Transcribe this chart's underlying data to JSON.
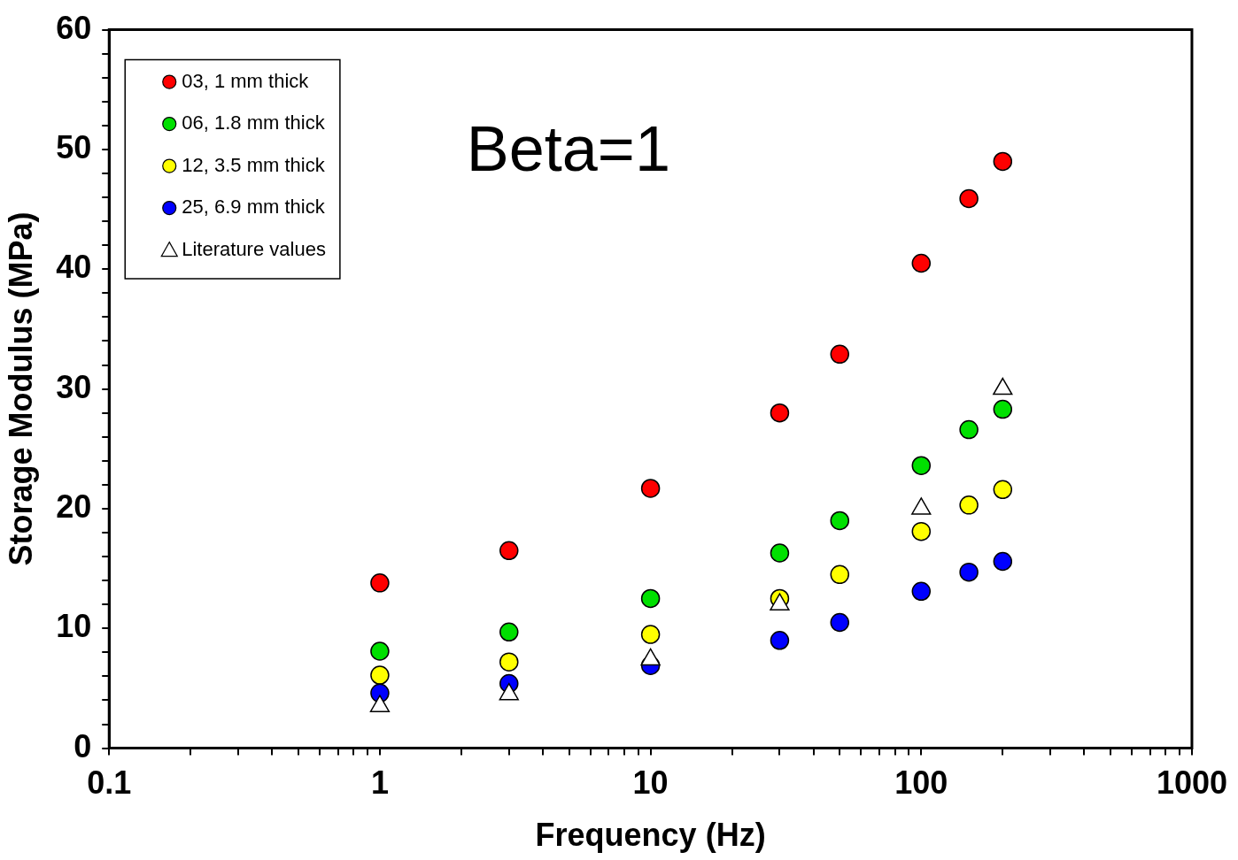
{
  "chart_data": {
    "type": "scatter",
    "xlabel": "Frequency (Hz)",
    "ylabel": "Storage Modulus (MPa)",
    "log": "x",
    "grid": false,
    "legend": "top left",
    "marker": "circle",
    "x": [
      1,
      3,
      10,
      30,
      50,
      100,
      150,
      200
    ],
    "xlim": [
      0.1,
      1000
    ],
    "xticks": [
      0.1,
      {
        "value": 0.2,
        "label": null
      },
      {
        "value": 0.3,
        "label": null
      },
      {
        "value": 0.4,
        "label": null
      },
      {
        "value": 0.5,
        "label": null
      },
      {
        "value": 0.6,
        "label": null
      },
      {
        "value": 0.7,
        "label": null
      },
      {
        "value": 0.8,
        "label": null
      },
      {
        "value": 0.9,
        "label": null
      },
      1,
      {
        "value": 2,
        "label": null
      },
      {
        "value": 3,
        "label": null
      },
      {
        "value": 4,
        "label": null
      },
      {
        "value": 5,
        "label": null
      },
      {
        "value": 6,
        "label": null
      },
      {
        "value": 7,
        "label": null
      },
      {
        "value": 8,
        "label": null
      },
      {
        "value": 9,
        "label": null
      },
      10,
      {
        "value": 20,
        "label": null
      },
      {
        "value": 30,
        "label": null
      },
      {
        "value": 40,
        "label": null
      },
      {
        "value": 50,
        "label": null
      },
      {
        "value": 60,
        "label": null
      },
      {
        "value": 70,
        "label": null
      },
      {
        "value": 80,
        "label": null
      },
      {
        "value": 90,
        "label": null
      },
      100,
      {
        "value": 200,
        "label": null
      },
      {
        "value": 300,
        "label": null
      },
      {
        "value": 400,
        "label": null
      },
      {
        "value": 500,
        "label": null
      },
      {
        "value": 600,
        "label": null
      },
      {
        "value": 700,
        "label": null
      },
      {
        "value": 800,
        "label": null
      },
      {
        "value": 900,
        "label": null
      },
      1000
    ],
    "ylim": [
      0,
      60
    ],
    "yticks": [
      0,
      {
        "value": 2,
        "label": null
      },
      {
        "value": 4,
        "label": null
      },
      {
        "value": 6,
        "label": null
      },
      {
        "value": 8,
        "label": null
      },
      10,
      {
        "value": 12,
        "label": null
      },
      {
        "value": 14,
        "label": null
      },
      {
        "value": 16,
        "label": null
      },
      {
        "value": 18,
        "label": null
      },
      20,
      {
        "value": 22,
        "label": null
      },
      {
        "value": 24,
        "label": null
      },
      {
        "value": 26,
        "label": null
      },
      {
        "value": 28,
        "label": null
      },
      30,
      {
        "value": 32,
        "label": null
      },
      {
        "value": 34,
        "label": null
      },
      {
        "value": 36,
        "label": null
      },
      {
        "value": 38,
        "label": null
      },
      40,
      {
        "value": 42,
        "label": null
      },
      {
        "value": 44,
        "label": null
      },
      {
        "value": 46,
        "label": null
      },
      {
        "value": 48,
        "label": null
      },
      50,
      {
        "value": 52,
        "label": null
      },
      {
        "value": 54,
        "label": null
      },
      {
        "value": 56,
        "label": null
      },
      {
        "value": 58,
        "label": null
      },
      60
    ],
    "annotations": [
      "Beta=1"
    ],
    "series": [
      {
        "name": "03, 1 mm thick",
        "color": "#ff0000",
        "values": [
          13.8,
          16.5,
          21.7,
          28.0,
          32.9,
          40.5,
          45.9,
          49.0
        ]
      },
      {
        "name": "06, 1.8 mm thick",
        "color": "#00e000",
        "values": [
          8.1,
          9.7,
          12.5,
          16.3,
          19.0,
          23.6,
          26.6,
          28.3
        ]
      },
      {
        "name": "12, 3.5 mm thick",
        "color": "#ffff00",
        "values": [
          6.1,
          7.2,
          9.5,
          12.5,
          14.5,
          18.1,
          20.3,
          21.6
        ]
      },
      {
        "name": "25, 6.9 mm thick",
        "color": "#0000ff",
        "values": [
          4.6,
          5.4,
          6.9,
          9.0,
          10.5,
          13.1,
          14.7,
          15.6
        ]
      },
      {
        "name": "Literature values",
        "color": "#ffffff",
        "marker": "triangle",
        "x": [
          1,
          3,
          10,
          30,
          100,
          200
        ],
        "values": [
          3.5,
          4.5,
          7.4,
          12.0,
          20.0,
          30.0
        ]
      }
    ]
  }
}
